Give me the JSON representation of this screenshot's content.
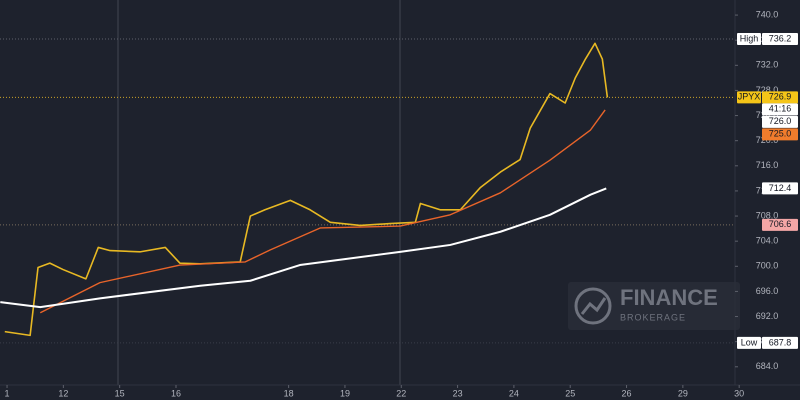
{
  "chart_data": {
    "type": "line",
    "xlim": [
      -0.125,
      14.08
    ],
    "xticks": [
      {
        "value": 0,
        "label": "1"
      },
      {
        "value": 1,
        "label": "12"
      },
      {
        "value": 2,
        "label": "15"
      },
      {
        "value": 3,
        "label": "16"
      },
      {
        "value": 5,
        "label": "18"
      },
      {
        "value": 6,
        "label": "19"
      },
      {
        "value": 7,
        "label": "22"
      },
      {
        "value": 8,
        "label": "23"
      },
      {
        "value": 9,
        "label": "24"
      },
      {
        "value": 10,
        "label": "25"
      },
      {
        "value": 11,
        "label": "26"
      },
      {
        "value": 12,
        "label": "29"
      },
      {
        "value": 13,
        "label": "30"
      }
    ],
    "ylim": [
      681.1,
      742.4
    ],
    "yticks": [
      {
        "value": 684,
        "label": "684.0"
      },
      {
        "value": 688,
        "label": "688.0"
      },
      {
        "value": 692,
        "label": "692.0"
      },
      {
        "value": 696,
        "label": "696.0"
      },
      {
        "value": 700,
        "label": "700.0"
      },
      {
        "value": 704,
        "label": "704.0"
      },
      {
        "value": 708,
        "label": "708.0"
      },
      {
        "value": 712,
        "label": "712.0"
      },
      {
        "value": 716,
        "label": "716.0"
      },
      {
        "value": 720,
        "label": "720.0"
      },
      {
        "value": 724,
        "label": "724.0"
      },
      {
        "value": 728,
        "label": "728.0"
      },
      {
        "value": 732,
        "label": "732.0"
      },
      {
        "value": 736,
        "label": "736.0"
      },
      {
        "value": 740,
        "label": "740.0"
      }
    ],
    "series": [
      {
        "color": "#e8b923",
        "width": 1.6,
        "x": [
          -0.04,
          0.41,
          0.55,
          0.76,
          0.99,
          1.4,
          1.62,
          1.83,
          2.36,
          2.81,
          3.07,
          3.43,
          4.14,
          4.32,
          4.58,
          5.03,
          5.38,
          5.74,
          6.27,
          6.8,
          7.25,
          7.34,
          7.69,
          8.05,
          8.4,
          8.76,
          9.11,
          9.29,
          9.64,
          9.91,
          10.09,
          10.27,
          10.44,
          10.57,
          10.66
        ],
        "values": [
          689.6,
          689.0,
          699.8,
          700.5,
          699.5,
          698,
          703,
          702.5,
          702.3,
          703,
          700.5,
          700.4,
          700.7,
          708,
          709,
          710.5,
          709,
          707,
          706.5,
          706.8,
          707,
          710,
          709,
          709,
          712.5,
          715,
          717,
          722,
          727.5,
          726,
          730,
          733,
          735.5,
          733,
          726.9
        ]
      },
      {
        "color": "#e8642a",
        "width": 1.4,
        "x": [
          0.59,
          1.65,
          3.07,
          4.23,
          4.67,
          5.56,
          6.98,
          7.87,
          8.76,
          9.64,
          10.36,
          10.62
        ],
        "values": [
          692.6,
          697.4,
          700.2,
          700.7,
          702.6,
          706.1,
          706.4,
          708.2,
          711.7,
          716.9,
          721.7,
          724.9
        ]
      },
      {
        "color": "#ffffff",
        "width": 2,
        "x": [
          -0.12,
          0.59,
          1.65,
          3.43,
          4.32,
          5.2,
          6.98,
          7.87,
          8.76,
          9.64,
          10.36,
          10.64
        ],
        "values": [
          694.3,
          693.5,
          694.9,
          696.9,
          697.7,
          700.2,
          702.3,
          703.4,
          705.5,
          708.2,
          711.4,
          712.4
        ]
      }
    ],
    "price_labels": [
      {
        "name": "High",
        "value": 736.2,
        "bg": "#ffffff",
        "line_color": "#5d606b"
      },
      {
        "name": "JPYX",
        "value": 726.9,
        "countdown": "41:16",
        "bg": "#f5c518",
        "line_color": "#c9a227"
      },
      {
        "value": 726,
        "label": "726.0",
        "bg": "#ffffff"
      },
      {
        "value": 725,
        "label": "725.0",
        "bg": "#f07c2c"
      },
      {
        "value": 712.4,
        "bg": "#ffffff"
      },
      {
        "value": 706.6,
        "bg": "#f4a6a6",
        "line_color": "#7a6e5e"
      },
      {
        "name": "Low",
        "value": 687.8,
        "bg": "#ffffff",
        "line_color": "#3a3e4a"
      }
    ]
  },
  "watermark": {
    "title": "FINANCE",
    "subtitle": "BROKERAGE"
  }
}
